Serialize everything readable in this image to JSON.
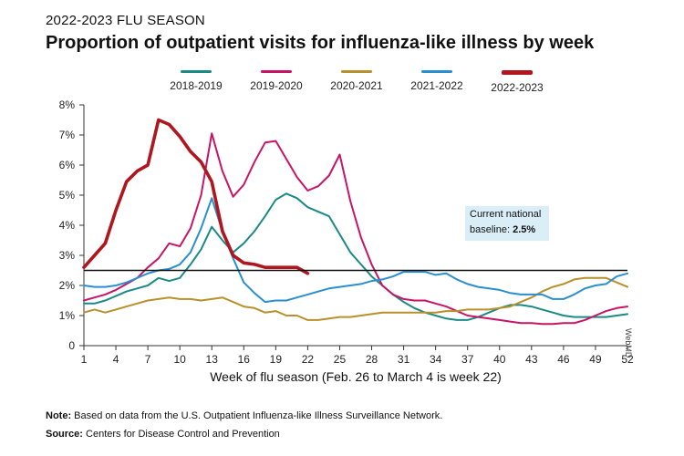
{
  "header": {
    "supertitle": "2022-2023 FLU SEASON",
    "title": "Proportion of outpatient visits for influenza-like illness by week"
  },
  "footer": {
    "note_prefix": "Note:",
    "note_text": " Based on data from the U.S. Outpatient Influenza-like Illness Surveillance Network.",
    "source_prefix": "Source:",
    "source_text": " Centers for Disease Control and Prevention"
  },
  "watermark": "WebMD",
  "annotation": {
    "line1": "Current national",
    "line2_prefix": "baseline: ",
    "line2_value": "2.5%"
  },
  "colors": {
    "s2018": "#1a8a86",
    "s2019": "#c81466",
    "s2020": "#b8902c",
    "s2021": "#2a8fd0",
    "s2022": "#b0161e",
    "grey": "#606060"
  },
  "chart_data": {
    "type": "line",
    "title": "Proportion of outpatient visits for influenza-like illness by week",
    "xlabel": "Week of flu season (Feb. 26 to March 4 is week 22)",
    "ylabel": "",
    "xlim": [
      1,
      52
    ],
    "ylim": [
      0,
      8
    ],
    "xticks": [
      1,
      4,
      7,
      10,
      13,
      16,
      19,
      22,
      25,
      28,
      31,
      34,
      37,
      40,
      43,
      46,
      49,
      52
    ],
    "yticks": [
      0,
      1,
      2,
      3,
      4,
      5,
      6,
      7,
      8
    ],
    "ytick_labels": [
      "0",
      "1%",
      "2%",
      "3%",
      "4%",
      "5%",
      "6%",
      "7%",
      "8%"
    ],
    "baseline": 2.5,
    "series": [
      {
        "name": "2018-2019",
        "color_key": "s2018",
        "x": [
          1,
          2,
          3,
          4,
          5,
          6,
          7,
          8,
          9,
          10,
          11,
          12,
          13,
          14,
          15,
          16,
          17,
          18,
          19,
          20,
          21,
          22,
          23,
          24,
          25,
          26,
          27,
          28,
          29,
          30,
          31,
          32,
          33,
          34,
          35,
          36,
          37,
          38,
          39,
          40,
          41,
          42,
          43,
          44,
          45,
          46,
          47,
          48,
          49,
          50,
          51,
          52
        ],
        "values": [
          1.4,
          1.4,
          1.5,
          1.65,
          1.8,
          1.9,
          2.0,
          2.25,
          2.15,
          2.25,
          2.7,
          3.2,
          3.95,
          3.5,
          3.1,
          3.4,
          3.8,
          4.3,
          4.85,
          5.05,
          4.9,
          4.6,
          4.45,
          4.3,
          3.7,
          3.1,
          2.7,
          2.3,
          2.0,
          1.7,
          1.45,
          1.25,
          1.1,
          1.0,
          0.9,
          0.85,
          0.85,
          0.95,
          1.1,
          1.25,
          1.35,
          1.35,
          1.3,
          1.2,
          1.1,
          1.0,
          0.95,
          0.95,
          0.95,
          0.95,
          1.0,
          1.05
        ]
      },
      {
        "name": "2019-2020",
        "color_key": "s2019",
        "x": [
          1,
          2,
          3,
          4,
          5,
          6,
          7,
          8,
          9,
          10,
          11,
          12,
          13,
          14,
          15,
          16,
          17,
          18,
          19,
          20,
          21,
          22,
          23,
          24,
          25,
          26,
          27,
          28,
          29,
          30,
          31,
          32,
          33,
          34,
          35,
          36,
          37,
          38,
          39,
          40,
          41,
          42,
          43,
          44,
          45,
          46,
          47,
          48,
          49,
          50,
          51,
          52
        ],
        "values": [
          1.5,
          1.6,
          1.7,
          1.85,
          2.05,
          2.25,
          2.6,
          2.9,
          3.4,
          3.3,
          3.9,
          5.0,
          7.05,
          5.8,
          4.95,
          5.35,
          6.1,
          6.75,
          6.8,
          6.2,
          5.6,
          5.15,
          5.3,
          5.65,
          6.35,
          4.8,
          3.6,
          2.7,
          2.0,
          1.7,
          1.55,
          1.5,
          1.5,
          1.4,
          1.3,
          1.15,
          1.0,
          0.95,
          0.9,
          0.85,
          0.8,
          0.75,
          0.75,
          0.72,
          0.72,
          0.75,
          0.75,
          0.85,
          1.0,
          1.15,
          1.25,
          1.3
        ]
      },
      {
        "name": "2020-2021",
        "color_key": "s2020",
        "x": [
          1,
          2,
          3,
          4,
          5,
          6,
          7,
          8,
          9,
          10,
          11,
          12,
          13,
          14,
          15,
          16,
          17,
          18,
          19,
          20,
          21,
          22,
          23,
          24,
          25,
          26,
          27,
          28,
          29,
          30,
          31,
          32,
          33,
          34,
          35,
          36,
          37,
          38,
          39,
          40,
          41,
          42,
          43,
          44,
          45,
          46,
          47,
          48,
          49,
          50,
          51,
          52
        ],
        "values": [
          1.1,
          1.2,
          1.1,
          1.2,
          1.3,
          1.4,
          1.5,
          1.55,
          1.6,
          1.55,
          1.55,
          1.5,
          1.55,
          1.6,
          1.45,
          1.3,
          1.25,
          1.1,
          1.15,
          1.0,
          1.0,
          0.85,
          0.85,
          0.9,
          0.95,
          0.95,
          1.0,
          1.05,
          1.1,
          1.1,
          1.1,
          1.1,
          1.1,
          1.1,
          1.15,
          1.15,
          1.2,
          1.2,
          1.2,
          1.25,
          1.3,
          1.45,
          1.6,
          1.8,
          1.95,
          2.05,
          2.2,
          2.25,
          2.25,
          2.25,
          2.1,
          1.95
        ]
      },
      {
        "name": "2021-2022",
        "color_key": "s2021",
        "x": [
          1,
          2,
          3,
          4,
          5,
          6,
          7,
          8,
          9,
          10,
          11,
          12,
          13,
          14,
          15,
          16,
          17,
          18,
          19,
          20,
          21,
          22,
          23,
          24,
          25,
          26,
          27,
          28,
          29,
          30,
          31,
          32,
          33,
          34,
          35,
          36,
          37,
          38,
          39,
          40,
          41,
          42,
          43,
          44,
          45,
          46,
          47,
          48,
          49,
          50,
          51,
          52
        ],
        "values": [
          2.0,
          1.95,
          1.95,
          2.0,
          2.1,
          2.25,
          2.4,
          2.5,
          2.55,
          2.7,
          3.1,
          3.9,
          4.9,
          3.8,
          2.9,
          2.1,
          1.75,
          1.45,
          1.5,
          1.5,
          1.6,
          1.7,
          1.8,
          1.9,
          1.95,
          2.0,
          2.05,
          2.15,
          2.2,
          2.3,
          2.45,
          2.45,
          2.45,
          2.35,
          2.4,
          2.2,
          2.05,
          1.95,
          1.9,
          1.85,
          1.75,
          1.7,
          1.7,
          1.7,
          1.55,
          1.55,
          1.7,
          1.9,
          2.0,
          2.05,
          2.3,
          2.4
        ]
      },
      {
        "name": "2022-2023",
        "color_key": "s2022",
        "x": [
          1,
          2,
          3,
          4,
          5,
          6,
          7,
          8,
          9,
          10,
          11,
          12,
          13,
          14,
          15,
          16,
          17,
          18,
          19,
          20,
          21,
          22
        ],
        "values": [
          2.6,
          3.0,
          3.4,
          4.5,
          5.45,
          5.8,
          6.0,
          7.5,
          7.35,
          6.95,
          6.45,
          6.1,
          5.45,
          3.8,
          3.0,
          2.75,
          2.7,
          2.6,
          2.6,
          2.6,
          2.6,
          2.4
        ]
      }
    ]
  }
}
